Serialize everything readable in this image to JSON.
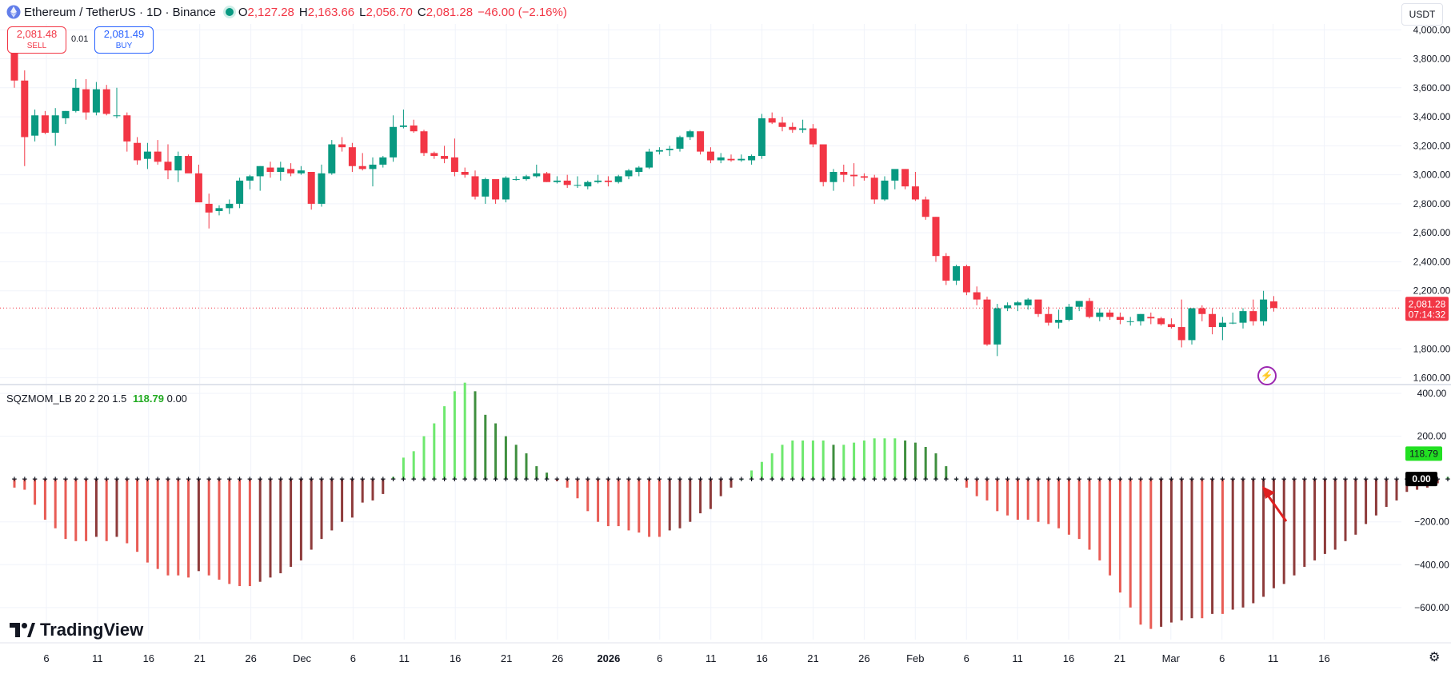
{
  "header": {
    "symbol": "Ethereum / TetherUS · 1D · Binance",
    "open_label": "O",
    "open": "2,127.28",
    "high_label": "H",
    "high": "2,163.66",
    "low_label": "L",
    "low": "2,056.70",
    "close_label": "C",
    "close": "2,081.28",
    "change": "−46.00 (−2.16%)"
  },
  "trade": {
    "sell_price": "2,081.48",
    "sell_label": "SELL",
    "spread": "0.01",
    "buy_price": "2,081.49",
    "buy_label": "BUY"
  },
  "currency": "USDT",
  "indicator": {
    "name": "SQZMOM_LB",
    "params": "20 2 20 1.5",
    "value1": "118.79",
    "value2": "0.00"
  },
  "brand": "TradingView",
  "icons": {
    "logo": "tradingview-logo-icon",
    "alert": "lightning-icon",
    "settings": "gear-icon",
    "arrow": "red-arrow-annotation"
  },
  "colors": {
    "up": "#089981",
    "down": "#f23645",
    "mom_up_strong": "#6ee86e",
    "mom_up_weak": "#3f8f3f",
    "mom_down_strong": "#e85c55",
    "mom_down_weak": "#8e3b3b"
  },
  "chart_data": [
    {
      "type": "candlestick",
      "title": "Ethereum / TetherUS · 1D · Binance",
      "ylim": [
        1570,
        4040
      ],
      "yticks": [
        "4,000.00",
        "3,800.00",
        "3,600.00",
        "3,400.00",
        "3,200.00",
        "3,000.00",
        "2,800.00",
        "2,600.00",
        "2,400.00",
        "2,200.00",
        "1,800.00",
        "1,600.00"
      ],
      "ytick_values": [
        4000,
        3800,
        3600,
        3400,
        3200,
        3000,
        2800,
        2600,
        2400,
        2200,
        1800,
        1600
      ],
      "xtick_labels": [
        "6",
        "11",
        "16",
        "21",
        "26",
        "Dec",
        "6",
        "11",
        "16",
        "21",
        "26",
        "2026",
        "6",
        "11",
        "16",
        "21",
        "26",
        "Feb",
        "6",
        "11",
        "16",
        "21",
        "Mar",
        "6",
        "11",
        "16"
      ],
      "last_price_label": "2,081.28",
      "countdown_label": "07:14:32",
      "last_price": 2081.28,
      "grid": true,
      "candles": [
        [
          3870,
          3900,
          3600,
          3650
        ],
        [
          3650,
          3720,
          3060,
          3260
        ],
        [
          3270,
          3450,
          3230,
          3410
        ],
        [
          3410,
          3440,
          3280,
          3290
        ],
        [
          3290,
          3460,
          3200,
          3410
        ],
        [
          3390,
          3440,
          3350,
          3440
        ],
        [
          3440,
          3660,
          3430,
          3600
        ],
        [
          3590,
          3660,
          3380,
          3430
        ],
        [
          3430,
          3640,
          3410,
          3590
        ],
        [
          3590,
          3620,
          3410,
          3420
        ],
        [
          3410,
          3600,
          3390,
          3410
        ],
        [
          3410,
          3430,
          3160,
          3230
        ],
        [
          3220,
          3260,
          3070,
          3100
        ],
        [
          3110,
          3220,
          3040,
          3160
        ],
        [
          3160,
          3240,
          3070,
          3090
        ],
        [
          3090,
          3210,
          2970,
          3030
        ],
        [
          3030,
          3160,
          2950,
          3130
        ],
        [
          3130,
          3140,
          3020,
          3010
        ],
        [
          3010,
          3070,
          2830,
          2810
        ],
        [
          2800,
          2870,
          2630,
          2740
        ],
        [
          2750,
          2790,
          2720,
          2770
        ],
        [
          2770,
          2830,
          2730,
          2800
        ],
        [
          2800,
          2980,
          2770,
          2960
        ],
        [
          2960,
          3000,
          2900,
          2990
        ],
        [
          2990,
          3060,
          2890,
          3060
        ],
        [
          3050,
          3090,
          2980,
          3020
        ],
        [
          3020,
          3090,
          2960,
          3050
        ],
        [
          3040,
          3080,
          2990,
          3010
        ],
        [
          3010,
          3060,
          3000,
          3030
        ],
        [
          3020,
          3010,
          2760,
          2800
        ],
        [
          2800,
          3070,
          2780,
          3010
        ],
        [
          3010,
          3240,
          3000,
          3210
        ],
        [
          3210,
          3260,
          3160,
          3190
        ],
        [
          3190,
          3220,
          3020,
          3060
        ],
        [
          3060,
          3150,
          3030,
          3040
        ],
        [
          3040,
          3120,
          2920,
          3070
        ],
        [
          3070,
          3130,
          3050,
          3120
        ],
        [
          3120,
          3410,
          3090,
          3330
        ],
        [
          3330,
          3450,
          3320,
          3340
        ],
        [
          3340,
          3380,
          3290,
          3300
        ],
        [
          3300,
          3310,
          3130,
          3150
        ],
        [
          3150,
          3160,
          3110,
          3130
        ],
        [
          3130,
          3200,
          3080,
          3110
        ],
        [
          3120,
          3250,
          2990,
          3020
        ],
        [
          3020,
          3050,
          2980,
          3000
        ],
        [
          2990,
          3030,
          2830,
          2850
        ],
        [
          2850,
          2980,
          2800,
          2970
        ],
        [
          2970,
          2950,
          2800,
          2830
        ],
        [
          2830,
          2990,
          2810,
          2980
        ],
        [
          2970,
          2990,
          2960,
          2970
        ],
        [
          2970,
          3000,
          2960,
          2990
        ],
        [
          2990,
          3070,
          2980,
          3010
        ],
        [
          3010,
          3020,
          2950,
          2950
        ],
        [
          2950,
          2990,
          2940,
          2960
        ],
        [
          2960,
          3000,
          2910,
          2930
        ],
        [
          2930,
          2990,
          2910,
          2930
        ],
        [
          2920,
          2960,
          2900,
          2950
        ],
        [
          2950,
          3000,
          2940,
          2960
        ],
        [
          2960,
          2990,
          2920,
          2950
        ],
        [
          2950,
          3000,
          2940,
          2990
        ],
        [
          2990,
          3040,
          2970,
          3030
        ],
        [
          3020,
          3060,
          2990,
          3050
        ],
        [
          3050,
          3180,
          3040,
          3160
        ],
        [
          3160,
          3190,
          3140,
          3170
        ],
        [
          3170,
          3200,
          3130,
          3180
        ],
        [
          3180,
          3270,
          3160,
          3260
        ],
        [
          3260,
          3310,
          3240,
          3300
        ],
        [
          3300,
          3300,
          3140,
          3160
        ],
        [
          3160,
          3190,
          3080,
          3100
        ],
        [
          3100,
          3150,
          3080,
          3120
        ],
        [
          3110,
          3140,
          3090,
          3100
        ],
        [
          3100,
          3140,
          3090,
          3110
        ],
        [
          3100,
          3140,
          3070,
          3130
        ],
        [
          3130,
          3420,
          3110,
          3390
        ],
        [
          3390,
          3430,
          3350,
          3360
        ],
        [
          3360,
          3400,
          3300,
          3330
        ],
        [
          3330,
          3360,
          3290,
          3310
        ],
        [
          3310,
          3380,
          3290,
          3320
        ],
        [
          3320,
          3350,
          3190,
          3210
        ],
        [
          3210,
          3190,
          2920,
          2950
        ],
        [
          2950,
          3040,
          2890,
          3020
        ],
        [
          3020,
          3070,
          2950,
          3000
        ],
        [
          3000,
          3080,
          2920,
          2990
        ],
        [
          2990,
          3010,
          2960,
          2980
        ],
        [
          2980,
          3000,
          2800,
          2830
        ],
        [
          2830,
          2990,
          2820,
          2960
        ],
        [
          2960,
          3030,
          2900,
          3040
        ],
        [
          3040,
          3040,
          2900,
          2920
        ],
        [
          2920,
          3020,
          2820,
          2830
        ],
        [
          2830,
          2850,
          2690,
          2710
        ],
        [
          2710,
          2710,
          2400,
          2440
        ],
        [
          2440,
          2460,
          2240,
          2270
        ],
        [
          2270,
          2380,
          2240,
          2370
        ],
        [
          2370,
          2380,
          2170,
          2190
        ],
        [
          2190,
          2230,
          2100,
          2140
        ],
        [
          2140,
          2160,
          1820,
          1830
        ],
        [
          1830,
          2110,
          1750,
          2080
        ],
        [
          2080,
          2120,
          2060,
          2100
        ],
        [
          2100,
          2130,
          2060,
          2120
        ],
        [
          2100,
          2150,
          2070,
          2140
        ],
        [
          2140,
          2130,
          2020,
          2040
        ],
        [
          2040,
          2090,
          1960,
          1980
        ],
        [
          1980,
          2070,
          1940,
          2000
        ],
        [
          2000,
          2110,
          1990,
          2090
        ],
        [
          2090,
          2130,
          2060,
          2130
        ],
        [
          2130,
          2150,
          2010,
          2020
        ],
        [
          2020,
          2080,
          1990,
          2050
        ],
        [
          2050,
          2070,
          2000,
          2020
        ],
        [
          2020,
          2050,
          1970,
          2000
        ],
        [
          1990,
          2020,
          1960,
          1990
        ],
        [
          1990,
          2040,
          1960,
          2040
        ],
        [
          2020,
          2050,
          1970,
          2010
        ],
        [
          2010,
          2020,
          1960,
          1970
        ],
        [
          1970,
          2010,
          1940,
          1950
        ],
        [
          1950,
          2140,
          1810,
          1860
        ],
        [
          1860,
          2080,
          1830,
          2080
        ],
        [
          2080,
          2100,
          1990,
          2040
        ],
        [
          2040,
          2080,
          1900,
          1950
        ],
        [
          1950,
          2020,
          1860,
          1980
        ],
        [
          1980,
          2050,
          1970,
          1980
        ],
        [
          1980,
          2080,
          1940,
          2060
        ],
        [
          2060,
          2140,
          1960,
          1990
        ],
        [
          1990,
          2200,
          1960,
          2140
        ],
        [
          2127.28,
          2163.66,
          2056.7,
          2081.28
        ]
      ]
    },
    {
      "type": "bar",
      "title": "SQZMOM_LB 20 2 20 1.5",
      "ylim": [
        -750,
        430
      ],
      "yticks": [
        "400.00",
        "200.00",
        "−200.00",
        "−400.00",
        "−600.00"
      ],
      "ytick_values": [
        400,
        200,
        -200,
        -400,
        -600
      ],
      "last_value_label": "118.79",
      "zero_label": "0.00",
      "values": [
        -40,
        -50,
        -120,
        -190,
        -230,
        -280,
        -290,
        -290,
        -270,
        -290,
        -270,
        -300,
        -340,
        -390,
        -420,
        -450,
        -450,
        -460,
        -430,
        -450,
        -470,
        -490,
        -500,
        -500,
        -480,
        -460,
        -440,
        -410,
        -380,
        -330,
        -280,
        -240,
        -200,
        -180,
        -110,
        -100,
        -70,
        10,
        100,
        130,
        200,
        260,
        340,
        410,
        450,
        410,
        300,
        260,
        200,
        160,
        120,
        60,
        30,
        -10,
        -40,
        -90,
        -150,
        -200,
        -220,
        -220,
        -240,
        -250,
        -270,
        -270,
        -240,
        -230,
        -200,
        -160,
        -140,
        -80,
        -40,
        0,
        40,
        80,
        120,
        160,
        180,
        180,
        180,
        180,
        160,
        160,
        170,
        180,
        190,
        190,
        190,
        180,
        170,
        150,
        120,
        60,
        0,
        -40,
        -80,
        -100,
        -150,
        -170,
        -190,
        -190,
        -200,
        -210,
        -230,
        -260,
        -280,
        -330,
        -380,
        -450,
        -530,
        -600,
        -680,
        -700,
        -690,
        -670,
        -660,
        -650,
        -650,
        -630,
        -630,
        -610,
        -600,
        -580,
        -550,
        -510,
        -490,
        -450,
        -410,
        -380,
        -350,
        -330,
        -290,
        -260,
        -210,
        -170,
        -130,
        -100,
        -60,
        -50,
        -40,
        -20,
        10,
        30,
        50,
        60,
        80,
        90,
        100,
        118.79
      ],
      "series": []
    }
  ]
}
